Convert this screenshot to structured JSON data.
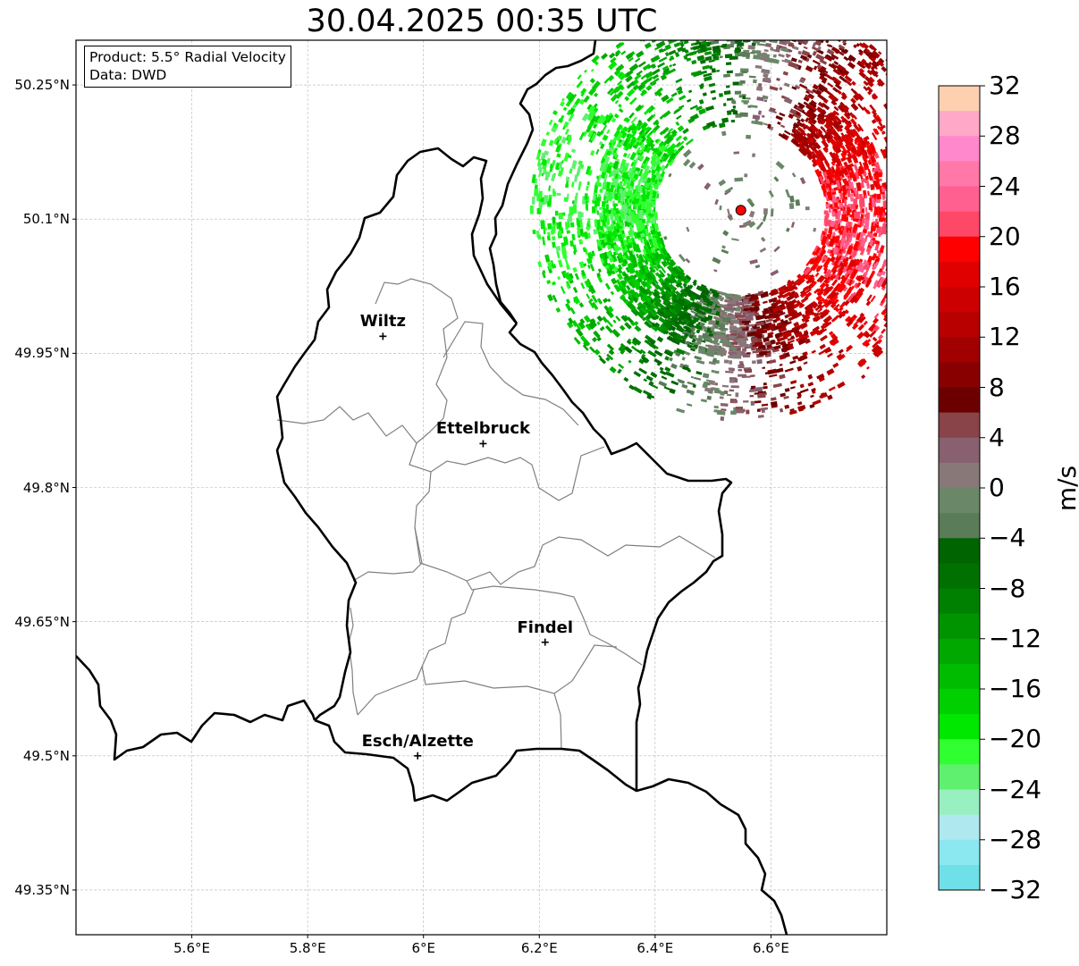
{
  "title": "30.04.2025 00:35 UTC",
  "info": {
    "product": "Product: 5.5° Radial Velocity",
    "source": "Data: DWD"
  },
  "lat_ticks": [
    {
      "value": 50.25,
      "label": "50.25°N"
    },
    {
      "value": 50.1,
      "label": "50.1°N"
    },
    {
      "value": 49.95,
      "label": "49.95°N"
    },
    {
      "value": 49.8,
      "label": "49.8°N"
    },
    {
      "value": 49.65,
      "label": "49.65°N"
    },
    {
      "value": 49.5,
      "label": "49.5°N"
    },
    {
      "value": 49.35,
      "label": "49.35°N"
    }
  ],
  "lon_ticks": [
    {
      "value": 5.6,
      "label": "5.6°E"
    },
    {
      "value": 5.8,
      "label": "5.8°E"
    },
    {
      "value": 6.0,
      "label": "6°E"
    },
    {
      "value": 6.2,
      "label": "6.2°E"
    },
    {
      "value": 6.4,
      "label": "6.4°E"
    },
    {
      "value": 6.6,
      "label": "6.6°E"
    }
  ],
  "extent": {
    "lon_min": 5.4,
    "lon_max": 6.8,
    "lat_min": 49.3,
    "lat_max": 50.3
  },
  "cities": [
    {
      "name": "Wiltz",
      "lon": 5.93,
      "lat": 49.969
    },
    {
      "name": "Ettelbruck",
      "lon": 6.103,
      "lat": 49.849
    },
    {
      "name": "Findel",
      "lon": 6.21,
      "lat": 49.627
    },
    {
      "name": "Esch/Alzette",
      "lon": 5.99,
      "lat": 49.5
    }
  ],
  "radar_site": {
    "lon": 6.548,
    "lat": 50.11,
    "color": "#ff0000"
  },
  "colorbar": {
    "unit": "m/s",
    "min": -32,
    "max": 32,
    "ticks": [
      "32",
      "28",
      "24",
      "20",
      "16",
      "12",
      "8",
      "4",
      "0",
      "−4",
      "−8",
      "−12",
      "−16",
      "−20",
      "−24",
      "−28",
      "−32"
    ],
    "colors_top_to_bottom": [
      "#ffd0b0",
      "#ffa8c8",
      "#ff88cc",
      "#ff78a8",
      "#ff6090",
      "#ff4868",
      "#ff0000",
      "#e00000",
      "#cc0000",
      "#b80000",
      "#a00000",
      "#880000",
      "#6c0000",
      "#884448",
      "#886070",
      "#887878",
      "#6a8868",
      "#5a7c58",
      "#006400",
      "#007000",
      "#008000",
      "#009400",
      "#00a800",
      "#00bc00",
      "#00d000",
      "#00e800",
      "#30ff30",
      "#60f070",
      "#98f0c0",
      "#b0e8f0",
      "#8ce8f0",
      "#70e0e8"
    ]
  },
  "colors": {
    "border": "#000000",
    "district": "#808080",
    "grid": "#b4b4b4"
  }
}
